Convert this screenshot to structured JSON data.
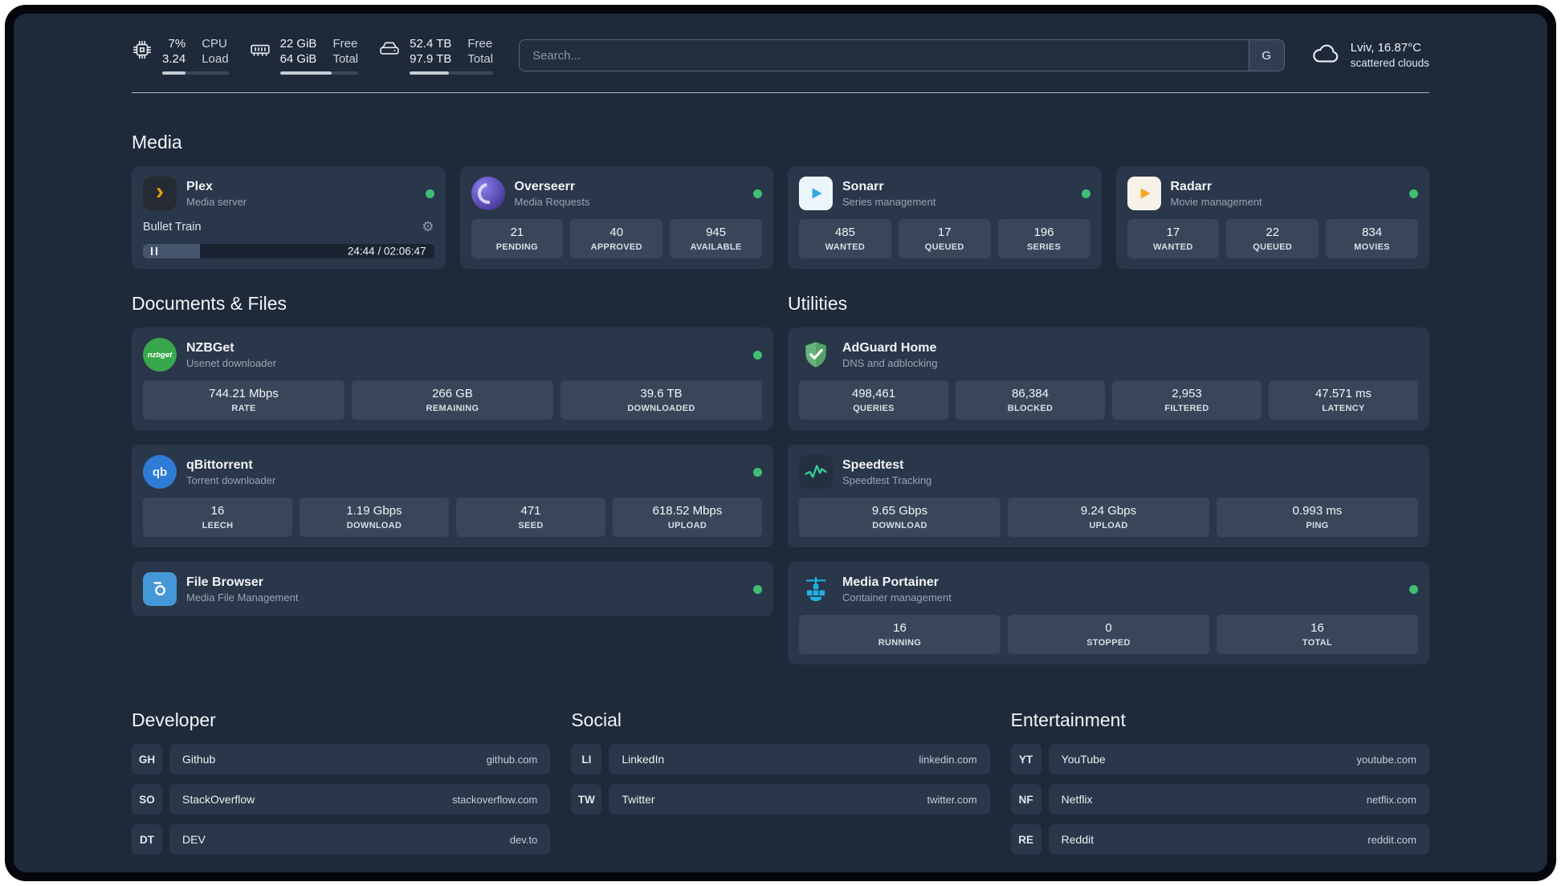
{
  "colors": {
    "ok": "#3fbf74",
    "plex": "#e5a00d",
    "sonarr": "#35a8e0",
    "radarr": "#f5a623",
    "nzbget": "#38a84c",
    "qbit": "#2e7cd6",
    "fb": "#4598d8",
    "adguard": "#67b47a",
    "speedline": "#35d49a",
    "portainer": "#1fb2e5",
    "overseerrA": "#8b7ff0",
    "overseerrB": "#4c3e9e",
    "progressfill": "#c6ccd5",
    "divider": "#ccd2da"
  },
  "topbar": {
    "cpu": {
      "v1": "7%",
      "v2": "3.24",
      "l1": "CPU",
      "l2": "Load",
      "progress": 35
    },
    "ram": {
      "v1": "22 GiB",
      "v2": "64 GiB",
      "l1": "Free",
      "l2": "Total",
      "progress": 66
    },
    "disk": {
      "v1": "52.4 TB",
      "v2": "97.9 TB",
      "l1": "Free",
      "l2": "Total",
      "progress": 47
    },
    "search": {
      "placeholder": "Search...",
      "button": "G"
    },
    "weather": {
      "location": "Lviv, 16.87°C",
      "condition": "scattered clouds"
    }
  },
  "sections": {
    "media": {
      "title": "Media",
      "plex": {
        "name": "Plex",
        "subtitle": "Media server",
        "icon_glyph": "›",
        "now_playing": "Bullet Train",
        "gear": "⚙",
        "time": "24:44 / 02:06:47",
        "progress": 19.5
      },
      "overseerr": {
        "name": "Overseerr",
        "subtitle": "Media Requests",
        "stats": [
          {
            "value": "21",
            "label": "PENDING"
          },
          {
            "value": "40",
            "label": "APPROVED"
          },
          {
            "value": "945",
            "label": "AVAILABLE"
          }
        ]
      },
      "sonarr": {
        "name": "Sonarr",
        "subtitle": "Series management",
        "stats": [
          {
            "value": "485",
            "label": "WANTED"
          },
          {
            "value": "17",
            "label": "QUEUED"
          },
          {
            "value": "196",
            "label": "SERIES"
          }
        ]
      },
      "radarr": {
        "name": "Radarr",
        "subtitle": "Movie management",
        "stats": [
          {
            "value": "17",
            "label": "WANTED"
          },
          {
            "value": "22",
            "label": "QUEUED"
          },
          {
            "value": "834",
            "label": "MOVIES"
          }
        ]
      }
    },
    "documents": {
      "title": "Documents & Files",
      "nzbget": {
        "name": "NZBGet",
        "subtitle": "Usenet downloader",
        "icon_text": "nzbget",
        "stats": [
          {
            "value": "744.21 Mbps",
            "label": "RATE"
          },
          {
            "value": "266 GB",
            "label": "REMAINING"
          },
          {
            "value": "39.6 TB",
            "label": "DOWNLOADED"
          }
        ]
      },
      "qbittorrent": {
        "name": "qBittorrent",
        "subtitle": "Torrent downloader",
        "icon_text": "qb",
        "stats": [
          {
            "value": "16",
            "label": "LEECH"
          },
          {
            "value": "1.19 Gbps",
            "label": "DOWNLOAD"
          },
          {
            "value": "471",
            "label": "SEED"
          },
          {
            "value": "618.52 Mbps",
            "label": "UPLOAD"
          }
        ]
      },
      "filebrowser": {
        "name": "File Browser",
        "subtitle": "Media File Management"
      }
    },
    "utilities": {
      "title": "Utilities",
      "adguard": {
        "name": "AdGuard Home",
        "subtitle": "DNS and adblocking",
        "stats": [
          {
            "value": "498,461",
            "label": "QUERIES"
          },
          {
            "value": "86,384",
            "label": "BLOCKED"
          },
          {
            "value": "2,953",
            "label": "FILTERED"
          },
          {
            "value": "47.571 ms",
            "label": "LATENCY"
          }
        ]
      },
      "speedtest": {
        "name": "Speedtest",
        "subtitle": "Speedtest Tracking",
        "stats": [
          {
            "value": "9.65 Gbps",
            "label": "DOWNLOAD"
          },
          {
            "value": "9.24 Gbps",
            "label": "UPLOAD"
          },
          {
            "value": "0.993 ms",
            "label": "PING"
          }
        ]
      },
      "portainer": {
        "name": "Media Portainer",
        "subtitle": "Container management",
        "stats": [
          {
            "value": "16",
            "label": "RUNNING"
          },
          {
            "value": "0",
            "label": "STOPPED"
          },
          {
            "value": "16",
            "label": "TOTAL"
          }
        ]
      }
    },
    "bookmarks": {
      "developer": {
        "title": "Developer",
        "links": [
          {
            "abbr": "GH",
            "name": "Github",
            "url": "github.com"
          },
          {
            "abbr": "SO",
            "name": "StackOverflow",
            "url": "stackoverflow.com"
          },
          {
            "abbr": "DT",
            "name": "DEV",
            "url": "dev.to"
          }
        ]
      },
      "social": {
        "title": "Social",
        "links": [
          {
            "abbr": "LI",
            "name": "LinkedIn",
            "url": "linkedin.com"
          },
          {
            "abbr": "TW",
            "name": "Twitter",
            "url": "twitter.com"
          }
        ]
      },
      "entertainment": {
        "title": "Entertainment",
        "links": [
          {
            "abbr": "YT",
            "name": "YouTube",
            "url": "youtube.com"
          },
          {
            "abbr": "NF",
            "name": "Netflix",
            "url": "netflix.com"
          },
          {
            "abbr": "RE",
            "name": "Reddit",
            "url": "reddit.com"
          }
        ]
      }
    }
  }
}
